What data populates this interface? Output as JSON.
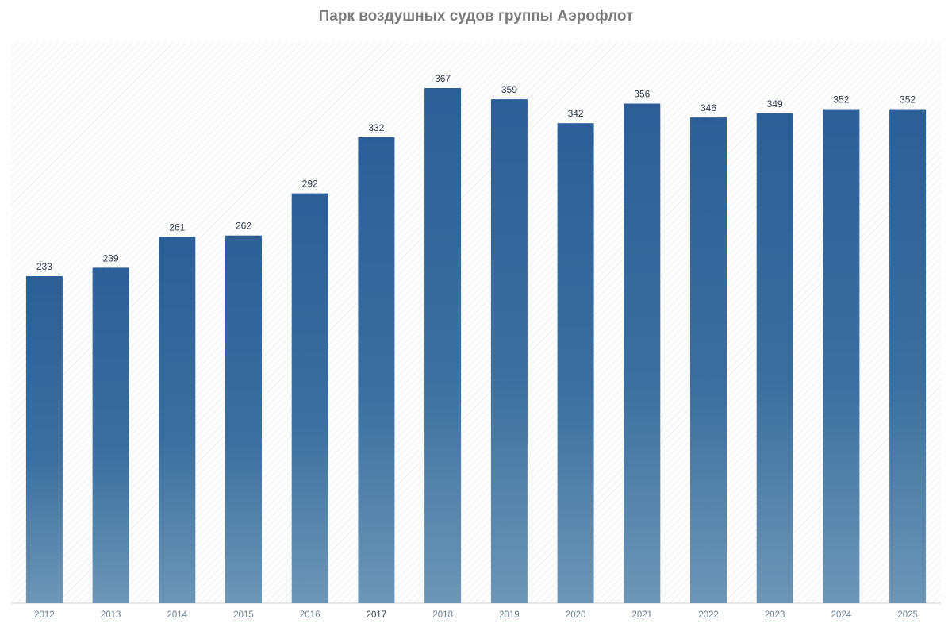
{
  "chart_data": {
    "type": "bar",
    "title": "Парк воздушных судов группы Аэрофлот",
    "xlabel": "",
    "ylabel": "",
    "categories": [
      "2012",
      "2013",
      "2014",
      "2015",
      "2016",
      "2017",
      "2018",
      "2019",
      "2020",
      "2021",
      "2022",
      "2023",
      "2024",
      "2025"
    ],
    "values": [
      233,
      239,
      261,
      262,
      292,
      332,
      367,
      359,
      342,
      356,
      346,
      349,
      352,
      352
    ],
    "ylim": [
      0,
      380
    ],
    "grid": false,
    "legend": "none"
  },
  "colors": {
    "bar_top": "#2c5f97",
    "bar_mid": "#3b6f9f",
    "bar_bottom": "#6d96b6",
    "hatch": "#d9dde2",
    "title": "#7a7a7a",
    "value_label": "#2f3a4a",
    "tick_label": "#6b7f96"
  }
}
